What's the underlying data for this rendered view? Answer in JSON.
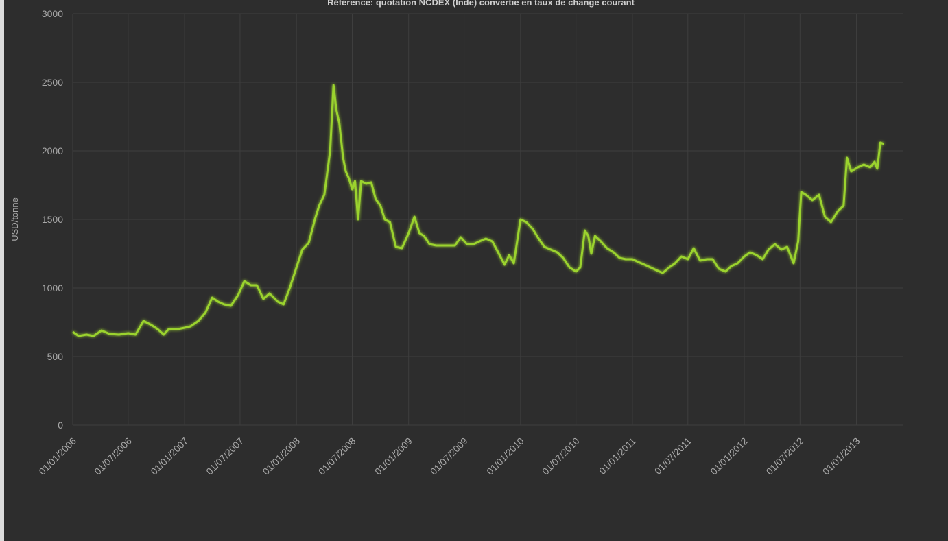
{
  "chart_data": {
    "type": "line",
    "title": "Référence: quotation NCDEX (Inde) convertie en taux de change courant",
    "xlabel": "",
    "ylabel": "USD/tonne",
    "ylim": [
      0,
      3000
    ],
    "yticks": [
      0,
      500,
      1000,
      1500,
      2000,
      2500,
      3000
    ],
    "xlim": [
      "2006-01-01",
      "2013-06-01"
    ],
    "xtick_labels": [
      {
        "date": "2006-01-01",
        "label": "01/01/2006"
      },
      {
        "date": "2006-07-01",
        "label": "01/07/2006"
      },
      {
        "date": "2007-01-01",
        "label": "01/01/2007"
      },
      {
        "date": "2007-07-01",
        "label": "01/07/2007"
      },
      {
        "date": "2008-01-01",
        "label": "01/01/2008"
      },
      {
        "date": "2008-07-01",
        "label": "01/07/2008"
      },
      {
        "date": "2009-01-01",
        "label": "01/01/2009"
      },
      {
        "date": "2009-07-01",
        "label": "01/07/2009"
      },
      {
        "date": "2010-01-01",
        "label": "01/01/2010"
      },
      {
        "date": "2010-07-01",
        "label": "01/07/2010"
      },
      {
        "date": "2011-01-01",
        "label": "01/01/2011"
      },
      {
        "date": "2011-07-01",
        "label": "01/07/2011"
      },
      {
        "date": "2012-01-01",
        "label": "01/01/2012"
      },
      {
        "date": "2012-07-01",
        "label": "01/07/2012"
      },
      {
        "date": "2013-01-01",
        "label": "01/01/2013"
      }
    ],
    "grid": true,
    "series": [
      {
        "color": "#9bd32e",
        "points": [
          [
            "2006-01-01",
            680
          ],
          [
            "2006-01-20",
            650
          ],
          [
            "2006-02-15",
            660
          ],
          [
            "2006-03-10",
            650
          ],
          [
            "2006-04-05",
            690
          ],
          [
            "2006-05-01",
            665
          ],
          [
            "2006-06-01",
            660
          ],
          [
            "2006-07-01",
            670
          ],
          [
            "2006-07-25",
            660
          ],
          [
            "2006-08-20",
            760
          ],
          [
            "2006-09-15",
            730
          ],
          [
            "2006-10-05",
            700
          ],
          [
            "2006-10-25",
            660
          ],
          [
            "2006-11-10",
            700
          ],
          [
            "2006-12-10",
            700
          ],
          [
            "2007-01-01",
            710
          ],
          [
            "2007-01-20",
            720
          ],
          [
            "2007-02-15",
            760
          ],
          [
            "2007-03-10",
            820
          ],
          [
            "2007-04-01",
            930
          ],
          [
            "2007-04-20",
            900
          ],
          [
            "2007-05-10",
            880
          ],
          [
            "2007-06-01",
            870
          ],
          [
            "2007-06-25",
            950
          ],
          [
            "2007-07-15",
            1050
          ],
          [
            "2007-08-05",
            1020
          ],
          [
            "2007-08-25",
            1020
          ],
          [
            "2007-09-15",
            920
          ],
          [
            "2007-10-05",
            960
          ],
          [
            "2007-11-01",
            900
          ],
          [
            "2007-11-20",
            880
          ],
          [
            "2007-12-10",
            1000
          ],
          [
            "2008-01-01",
            1150
          ],
          [
            "2008-01-20",
            1280
          ],
          [
            "2008-02-10",
            1330
          ],
          [
            "2008-03-01",
            1500
          ],
          [
            "2008-03-15",
            1600
          ],
          [
            "2008-04-01",
            1680
          ],
          [
            "2008-04-20",
            2000
          ],
          [
            "2008-05-01",
            2480
          ],
          [
            "2008-05-10",
            2300
          ],
          [
            "2008-05-20",
            2200
          ],
          [
            "2008-06-01",
            1950
          ],
          [
            "2008-06-10",
            1850
          ],
          [
            "2008-06-20",
            1800
          ],
          [
            "2008-07-01",
            1720
          ],
          [
            "2008-07-10",
            1780
          ],
          [
            "2008-07-20",
            1500
          ],
          [
            "2008-07-30",
            1780
          ],
          [
            "2008-08-15",
            1760
          ],
          [
            "2008-09-01",
            1770
          ],
          [
            "2008-09-15",
            1650
          ],
          [
            "2008-10-01",
            1600
          ],
          [
            "2008-10-15",
            1500
          ],
          [
            "2008-11-01",
            1480
          ],
          [
            "2008-11-20",
            1300
          ],
          [
            "2008-12-10",
            1290
          ],
          [
            "2009-01-01",
            1400
          ],
          [
            "2009-01-20",
            1520
          ],
          [
            "2009-02-05",
            1400
          ],
          [
            "2009-02-20",
            1380
          ],
          [
            "2009-03-10",
            1320
          ],
          [
            "2009-04-01",
            1310
          ],
          [
            "2009-05-01",
            1310
          ],
          [
            "2009-06-01",
            1310
          ],
          [
            "2009-06-20",
            1370
          ],
          [
            "2009-07-10",
            1320
          ],
          [
            "2009-08-01",
            1320
          ],
          [
            "2009-08-20",
            1340
          ],
          [
            "2009-09-10",
            1360
          ],
          [
            "2009-10-01",
            1340
          ],
          [
            "2009-10-20",
            1260
          ],
          [
            "2009-11-10",
            1170
          ],
          [
            "2009-11-25",
            1240
          ],
          [
            "2009-12-10",
            1180
          ],
          [
            "2010-01-01",
            1500
          ],
          [
            "2010-01-20",
            1480
          ],
          [
            "2010-02-10",
            1430
          ],
          [
            "2010-03-01",
            1360
          ],
          [
            "2010-03-20",
            1300
          ],
          [
            "2010-04-10",
            1280
          ],
          [
            "2010-05-01",
            1260
          ],
          [
            "2010-05-20",
            1220
          ],
          [
            "2010-06-10",
            1150
          ],
          [
            "2010-07-01",
            1120
          ],
          [
            "2010-07-15",
            1150
          ],
          [
            "2010-07-30",
            1420
          ],
          [
            "2010-08-10",
            1380
          ],
          [
            "2010-08-20",
            1250
          ],
          [
            "2010-09-01",
            1380
          ],
          [
            "2010-09-20",
            1340
          ],
          [
            "2010-10-10",
            1290
          ],
          [
            "2010-11-01",
            1260
          ],
          [
            "2010-11-20",
            1220
          ],
          [
            "2010-12-10",
            1210
          ],
          [
            "2011-01-01",
            1210
          ],
          [
            "2011-01-20",
            1190
          ],
          [
            "2011-02-10",
            1170
          ],
          [
            "2011-03-01",
            1150
          ],
          [
            "2011-03-20",
            1130
          ],
          [
            "2011-04-10",
            1110
          ],
          [
            "2011-05-01",
            1150
          ],
          [
            "2011-05-20",
            1180
          ],
          [
            "2011-06-10",
            1230
          ],
          [
            "2011-07-01",
            1210
          ],
          [
            "2011-07-20",
            1290
          ],
          [
            "2011-08-10",
            1200
          ],
          [
            "2011-09-01",
            1210
          ],
          [
            "2011-09-20",
            1210
          ],
          [
            "2011-10-10",
            1140
          ],
          [
            "2011-11-01",
            1120
          ],
          [
            "2011-11-20",
            1160
          ],
          [
            "2011-12-10",
            1180
          ],
          [
            "2012-01-01",
            1230
          ],
          [
            "2012-01-20",
            1260
          ],
          [
            "2012-02-10",
            1240
          ],
          [
            "2012-03-01",
            1210
          ],
          [
            "2012-03-20",
            1280
          ],
          [
            "2012-04-10",
            1320
          ],
          [
            "2012-05-01",
            1280
          ],
          [
            "2012-05-20",
            1300
          ],
          [
            "2012-06-10",
            1180
          ],
          [
            "2012-06-25",
            1340
          ],
          [
            "2012-07-05",
            1700
          ],
          [
            "2012-07-20",
            1680
          ],
          [
            "2012-08-10",
            1640
          ],
          [
            "2012-09-01",
            1680
          ],
          [
            "2012-09-20",
            1520
          ],
          [
            "2012-10-10",
            1480
          ],
          [
            "2012-11-01",
            1560
          ],
          [
            "2012-11-20",
            1600
          ],
          [
            "2012-12-01",
            1950
          ],
          [
            "2012-12-15",
            1850
          ],
          [
            "2013-01-05",
            1880
          ],
          [
            "2013-01-25",
            1900
          ],
          [
            "2013-02-15",
            1880
          ],
          [
            "2013-03-01",
            1920
          ],
          [
            "2013-03-10",
            1870
          ],
          [
            "2013-03-20",
            2060
          ],
          [
            "2013-04-01",
            2050
          ]
        ]
      }
    ]
  }
}
